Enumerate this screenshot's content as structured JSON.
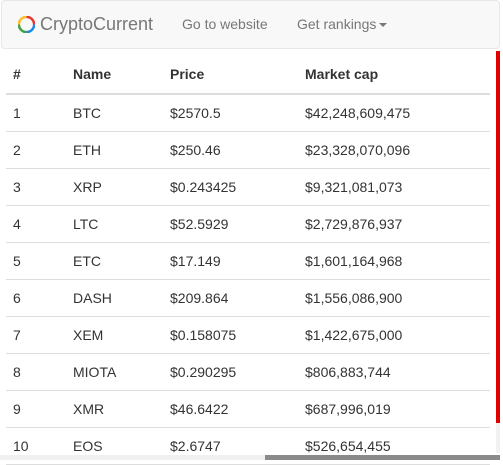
{
  "navbar": {
    "brand": "CryptoCurrent",
    "links": [
      "Go to website",
      "Get rankings"
    ],
    "logo_colors": [
      "#e53935",
      "#1e88e5",
      "#43a047",
      "#fbc02d"
    ]
  },
  "table": {
    "headers": [
      "#",
      "Name",
      "Price",
      "Market cap"
    ],
    "rows": [
      [
        "1",
        "BTC",
        "$2570.5",
        "$42,248,609,475"
      ],
      [
        "2",
        "ETH",
        "$250.46",
        "$23,328,070,096"
      ],
      [
        "3",
        "XRP",
        "$0.243425",
        "$9,321,081,073"
      ],
      [
        "4",
        "LTC",
        "$52.5929",
        "$2,729,876,937"
      ],
      [
        "5",
        "ETC",
        "$17.149",
        "$1,601,164,968"
      ],
      [
        "6",
        "DASH",
        "$209.864",
        "$1,556,086,900"
      ],
      [
        "7",
        "XEM",
        "$0.158075",
        "$1,422,675,000"
      ],
      [
        "8",
        "MIOTA",
        "$0.290295",
        "$806,883,744"
      ],
      [
        "9",
        "XMR",
        "$46.6422",
        "$687,996,019"
      ],
      [
        "10",
        "EOS",
        "$2.6747",
        "$526,654,455"
      ]
    ]
  }
}
